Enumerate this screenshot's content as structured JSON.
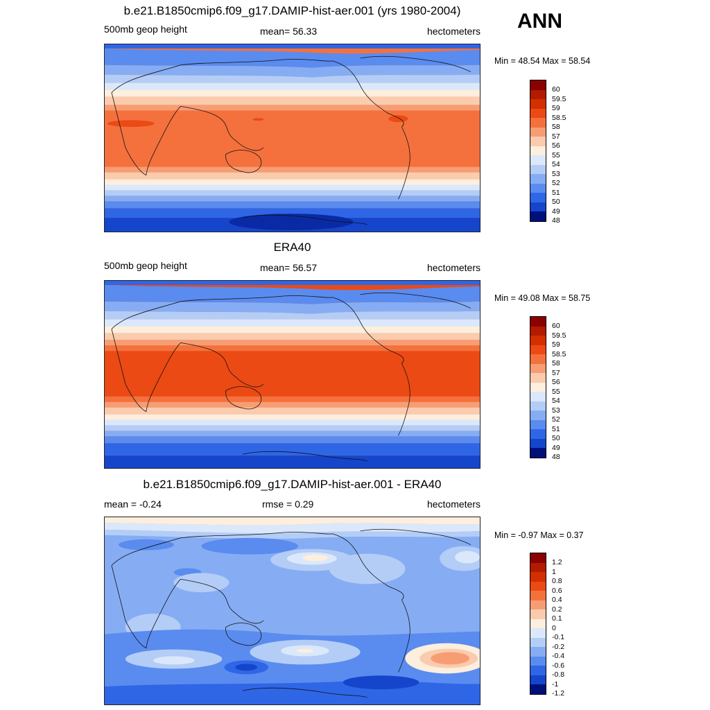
{
  "season": "ANN",
  "panels": [
    {
      "title": "b.e21.B1850cmip6.f09_g17.DAMIP-hist-aer.001 (yrs 1980-2004)",
      "left_label": "500mb geop height",
      "center_label": "mean=  56.33",
      "right_label": "hectometers",
      "minmax": "Min =  48.54 Max =  58.54",
      "colorbar_labels": [
        "60",
        "59.5",
        "59",
        "58.5",
        "58",
        "57",
        "56",
        "55",
        "54",
        "53",
        "52",
        "51",
        "50",
        "49",
        "48"
      ]
    },
    {
      "title": "ERA40",
      "left_label": "500mb geop height",
      "center_label": "mean=  56.57",
      "right_label": "hectometers",
      "minmax": "Min =  49.08 Max =  58.75",
      "colorbar_labels": [
        "60",
        "59.5",
        "59",
        "58.5",
        "58",
        "57",
        "56",
        "55",
        "54",
        "53",
        "52",
        "51",
        "50",
        "49",
        "48"
      ]
    },
    {
      "title": "b.e21.B1850cmip6.f09_g17.DAMIP-hist-aer.001 - ERA40",
      "left_label": "mean =  -0.24",
      "center_label": "rmse =   0.29",
      "right_label": "hectometers",
      "minmax": "Min =  -0.97 Max =   0.37",
      "colorbar_labels": [
        "1.2",
        "1",
        "0.8",
        "0.6",
        "0.4",
        "0.2",
        "0.1",
        "0",
        "-0.1",
        "-0.2",
        "-0.4",
        "-0.6",
        "-0.8",
        "-1",
        "-1.2"
      ]
    }
  ],
  "colorbar_colors": [
    "#8b0000",
    "#b21b00",
    "#d32f00",
    "#eb4a14",
    "#f4713d",
    "#f79d74",
    "#facbad",
    "#fdeedd",
    "#dbe8fb",
    "#b4cdf7",
    "#86adf3",
    "#5a8bef",
    "#2f66e6",
    "#1545cb",
    "#0a2aa5",
    "#00107a"
  ]
}
